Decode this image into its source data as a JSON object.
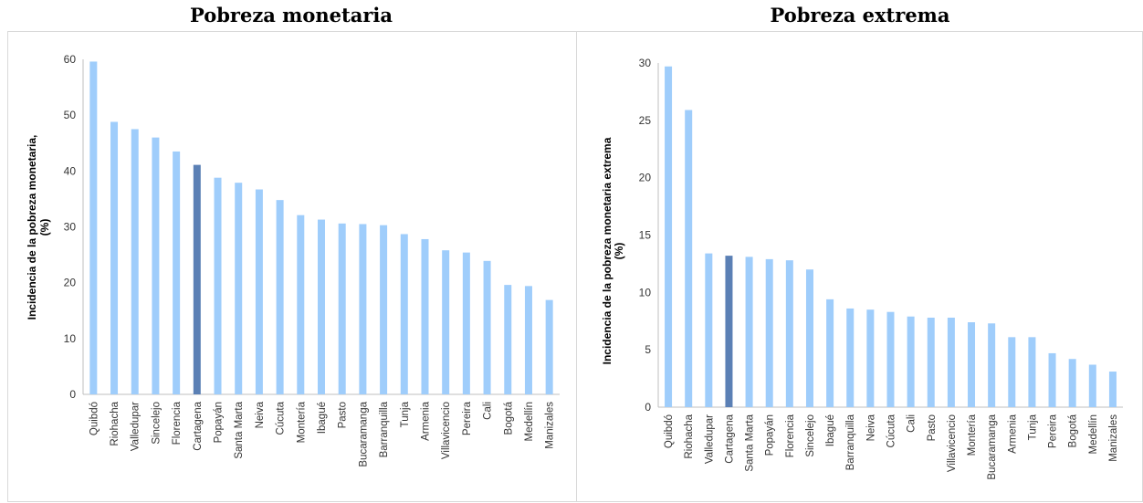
{
  "chart_data": [
    {
      "type": "bar",
      "title": "Pobreza monetaria",
      "ylabel_line1": "Incidencia de la pobreza monetaria,",
      "ylabel_line2": "(%)",
      "ylim": [
        0,
        60
      ],
      "yticks": [
        0,
        10,
        20,
        30,
        40,
        50,
        60
      ],
      "grid": false,
      "categories": [
        "Quibdó",
        "Riohacha",
        "Valledupar",
        "Sincelejo",
        "Florencia",
        "Cartagena",
        "Popayán",
        "Santa Marta",
        "Neiva",
        "Cúcuta",
        "Montería",
        "Ibagué",
        "Pasto",
        "Bucaramanga",
        "Barranquilla",
        "Tunja",
        "Armenia",
        "Villavicencio",
        "Pereira",
        "Cali",
        "Bogotá",
        "Medellín",
        "Manizales"
      ],
      "values": [
        59.6,
        48.8,
        47.5,
        46.0,
        43.5,
        41.1,
        38.8,
        37.9,
        36.7,
        34.8,
        32.1,
        31.3,
        30.6,
        30.5,
        30.3,
        28.7,
        27.8,
        25.8,
        25.4,
        23.9,
        19.6,
        19.4,
        16.9
      ],
      "bar_color": "#9fcdfb",
      "highlight_color": "#5b80b5",
      "highlight_category": "Cartagena"
    },
    {
      "type": "bar",
      "title": "Pobreza extrema",
      "ylabel_line1": "Incidencia de la pobreza monetaria extrema",
      "ylabel_line2": "(%)",
      "ylim": [
        0,
        30
      ],
      "yticks": [
        0,
        5,
        10,
        15,
        20,
        25,
        30
      ],
      "grid": false,
      "categories": [
        "Quibdó",
        "Riohacha",
        "Valledupar",
        "Cartagena",
        "Santa Marta",
        "Popayán",
        "Florencia",
        "Sincelejo",
        "Ibagué",
        "Barranquilla",
        "Neiva",
        "Cúcuta",
        "Cali",
        "Pasto",
        "Villavicencio",
        "Montería",
        "Bucaramanga",
        "Armenia",
        "Tunja",
        "Pereira",
        "Bogotá",
        "Medellín",
        "Manizales"
      ],
      "values": [
        29.7,
        25.9,
        13.4,
        13.2,
        13.1,
        12.9,
        12.8,
        12.0,
        9.4,
        8.6,
        8.5,
        8.3,
        7.9,
        7.8,
        7.8,
        7.4,
        7.3,
        6.1,
        6.1,
        4.7,
        4.2,
        3.7,
        3.1
      ],
      "bar_color": "#9fcdfb",
      "highlight_color": "#5b80b5",
      "highlight_category": "Cartagena"
    }
  ]
}
